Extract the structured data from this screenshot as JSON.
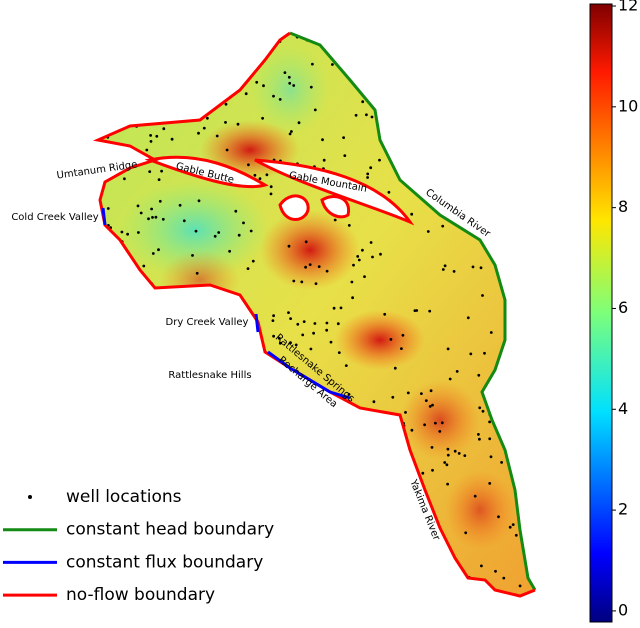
{
  "map": {
    "places": [
      "Umtanum Ridge",
      "Gable Butte",
      "Gable Mountain",
      "Columbia River",
      "Cold Creek Valley",
      "Dry Creek Valley",
      "Rattlesnake Hills",
      "Rattlesnake Springs",
      "Recharge Area",
      "Yakima River"
    ],
    "legend": [
      {
        "label": "well locations",
        "color": "#000000"
      },
      {
        "label": "constant head boundary",
        "color": "#138a13"
      },
      {
        "label": "constant flux boundary",
        "color": "#0000ff"
      },
      {
        "label": "no-flow boundary",
        "color": "#ff0000"
      }
    ],
    "colorbar": {
      "lim": [
        -0.22,
        12.04
      ],
      "ticks": [
        0,
        2,
        4,
        6,
        8,
        10,
        12
      ]
    }
  }
}
